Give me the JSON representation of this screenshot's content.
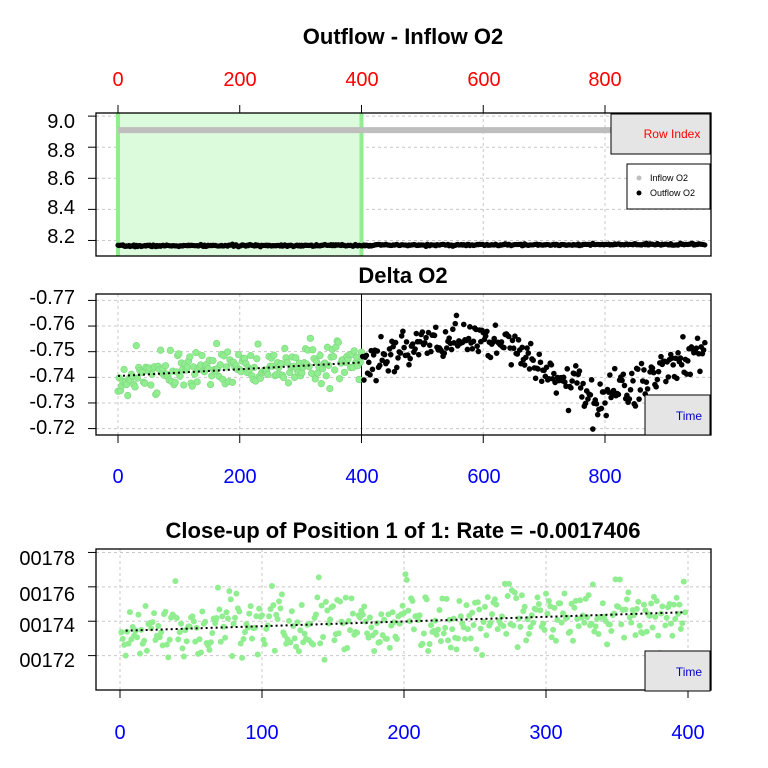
{
  "colors": {
    "red_axis": "#ff0000",
    "blue_axis": "#0000ff",
    "inflow": "#bebebe",
    "outflow": "#000000",
    "highlight_fill": "#dcfadc",
    "highlight_line": "#90ee90",
    "green_points": "#90ee90",
    "grid": "#c8c8c8",
    "tag_fill": "#e5e5e5"
  },
  "chart_data": [
    {
      "type": "scatter",
      "title": "Outflow - Inflow O2",
      "top_axis_ticks": [
        "0",
        "200",
        "400",
        "600",
        "800"
      ],
      "x_range": [
        -15,
        970
      ],
      "y_ticks": [
        "9.0",
        "8.8",
        "8.6",
        "8.4",
        "8.2"
      ],
      "ylim": [
        8.1,
        9.02
      ],
      "tag_label": "Row Index",
      "legend": {
        "placement": "top-right",
        "entries": [
          "Inflow O2",
          "Outflow O2"
        ]
      },
      "highlight": {
        "x_start": 0,
        "x_end": 400
      },
      "series": [
        {
          "name": "Inflow O2",
          "x_start": 0,
          "x_end": 965,
          "value": 8.91
        },
        {
          "name": "Outflow O2",
          "x_start": 0,
          "x_end": 965,
          "value_start": 8.165,
          "value_end": 8.175
        }
      ]
    },
    {
      "type": "scatter",
      "title": "Delta O2",
      "x_ticks": [
        "0",
        "200",
        "400",
        "600",
        "800"
      ],
      "y_ticks": [
        "-0.77",
        "-0.76",
        "-0.75",
        "-0.74",
        "-0.73",
        "-0.72"
      ],
      "ylim": [
        -0.7725,
        -0.7175
      ],
      "tag_label": "Time",
      "highlight": {
        "x_start": 0,
        "x_end": 400
      },
      "trend": {
        "x": [
          0,
          400
        ],
        "y": [
          -0.7405,
          -0.7458
        ]
      },
      "trend_segments": {
        "x": [
          0,
          100,
          200,
          300,
          400,
          480,
          560,
          640,
          700,
          760,
          800,
          840,
          880,
          920,
          965
        ],
        "y": [
          -0.7405,
          -0.7425,
          -0.744,
          -0.745,
          -0.747,
          -0.7505,
          -0.756,
          -0.7505,
          -0.744,
          -0.735,
          -0.734,
          -0.735,
          -0.739,
          -0.745,
          -0.752
        ]
      }
    },
    {
      "type": "scatter",
      "title": "Close-up of Position 1 of 1: Rate =  -0.0017406",
      "x_ticks": [
        "0",
        "100",
        "200",
        "300",
        "400"
      ],
      "y_ticks": [
        "00178",
        "00176",
        "00174",
        "00172"
      ],
      "ylim": [
        0.0017,
        0.001782
      ],
      "tag_label": "Time",
      "trend": {
        "x": [
          4,
          397
        ],
        "y": [
          0.0017345,
          0.0017452
        ]
      }
    }
  ]
}
